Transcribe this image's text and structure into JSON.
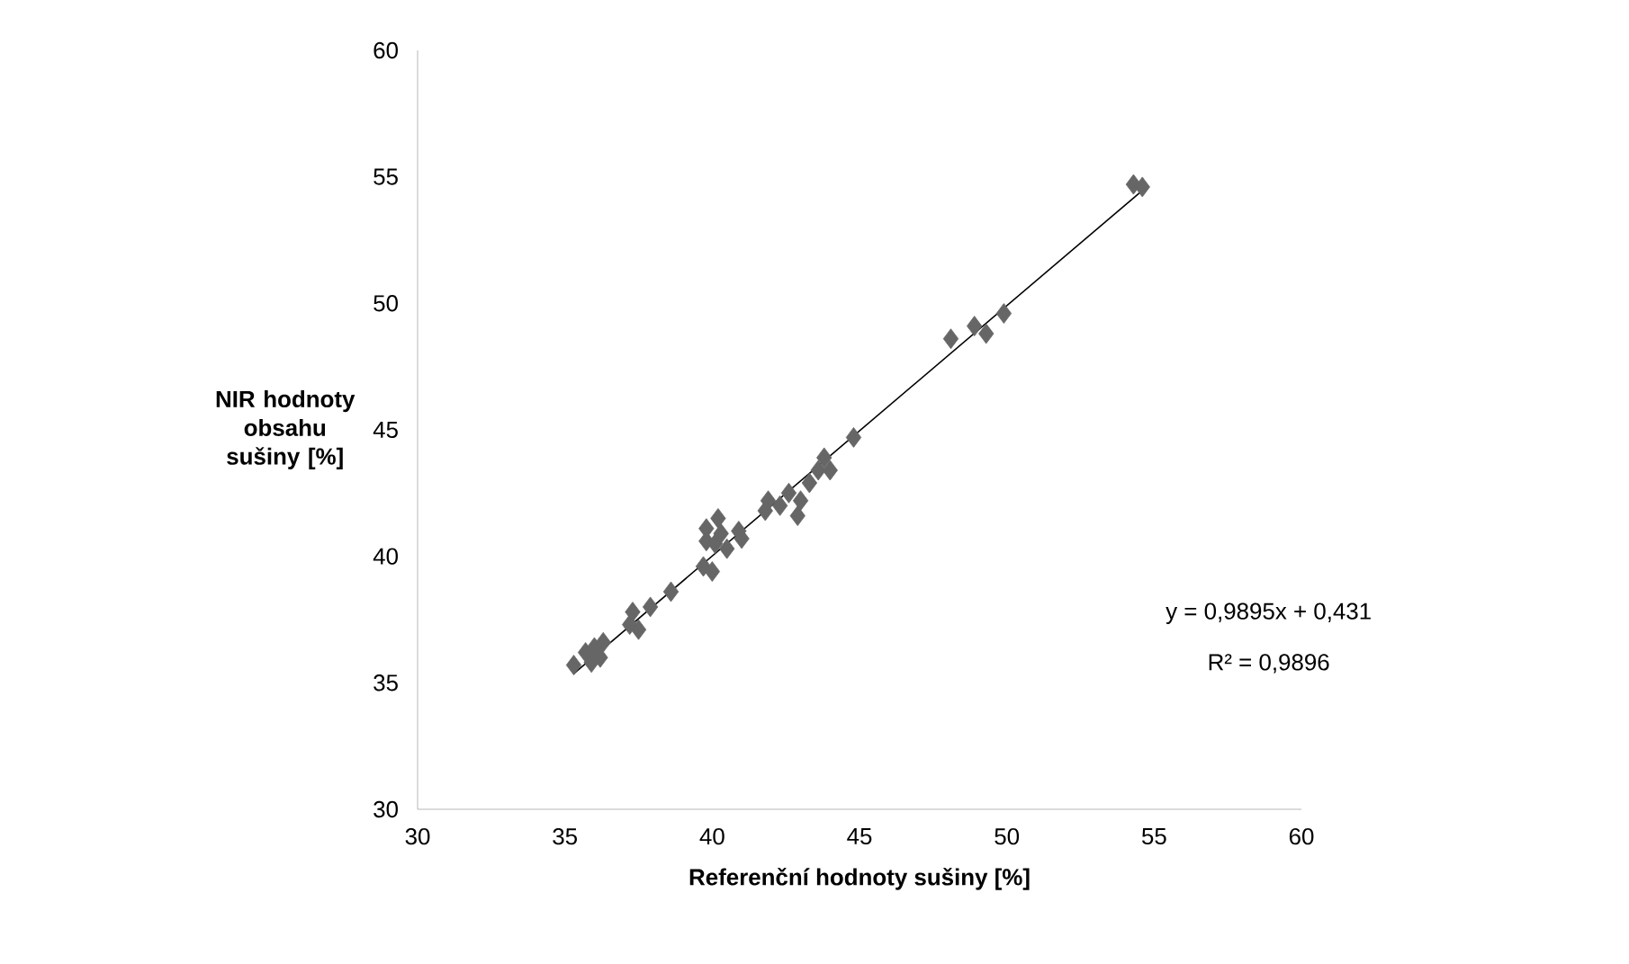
{
  "chart_data": {
    "type": "scatter",
    "xlabel": "Referenční hodnoty sušiny [%]",
    "ylabel": "NIR hodnoty obsahu sušiny [%]",
    "xlim": [
      30,
      60
    ],
    "ylim": [
      30,
      60
    ],
    "xticks": [
      30,
      35,
      40,
      45,
      50,
      55,
      60
    ],
    "yticks": [
      30,
      35,
      40,
      45,
      50,
      55,
      60
    ],
    "marker": "diamond",
    "annotations": [
      "y = 0,9895x + 0,431",
      "R² = 0,9896"
    ],
    "series": [
      {
        "color": "#666666",
        "x": [
          35.3,
          35.7,
          35.9,
          36.0,
          36.2,
          36.3,
          37.2,
          37.3,
          37.5,
          37.9,
          38.6,
          39.7,
          39.8,
          39.8,
          40.0,
          40.1,
          40.2,
          40.3,
          40.5,
          40.9,
          41.0,
          41.8,
          41.9,
          42.3,
          42.6,
          42.9,
          43.0,
          43.3,
          43.6,
          43.8,
          44.0,
          44.8,
          48.1,
          48.9,
          49.3,
          49.9,
          54.3,
          54.6
        ],
        "values": [
          35.7,
          36.2,
          35.8,
          36.4,
          36.0,
          36.6,
          37.3,
          37.8,
          37.1,
          38.0,
          38.6,
          39.6,
          40.6,
          41.1,
          39.4,
          40.5,
          41.5,
          40.9,
          40.3,
          41.0,
          40.7,
          41.8,
          42.2,
          42.0,
          42.5,
          41.6,
          42.2,
          42.9,
          43.4,
          43.9,
          43.4,
          44.7,
          48.6,
          49.1,
          48.8,
          49.6,
          54.7,
          54.6
        ]
      },
      {
        "type": "line",
        "marker": "none",
        "color": "#000000",
        "x": [
          35.3,
          54.6
        ],
        "values": [
          35.36,
          54.46
        ]
      }
    ]
  }
}
